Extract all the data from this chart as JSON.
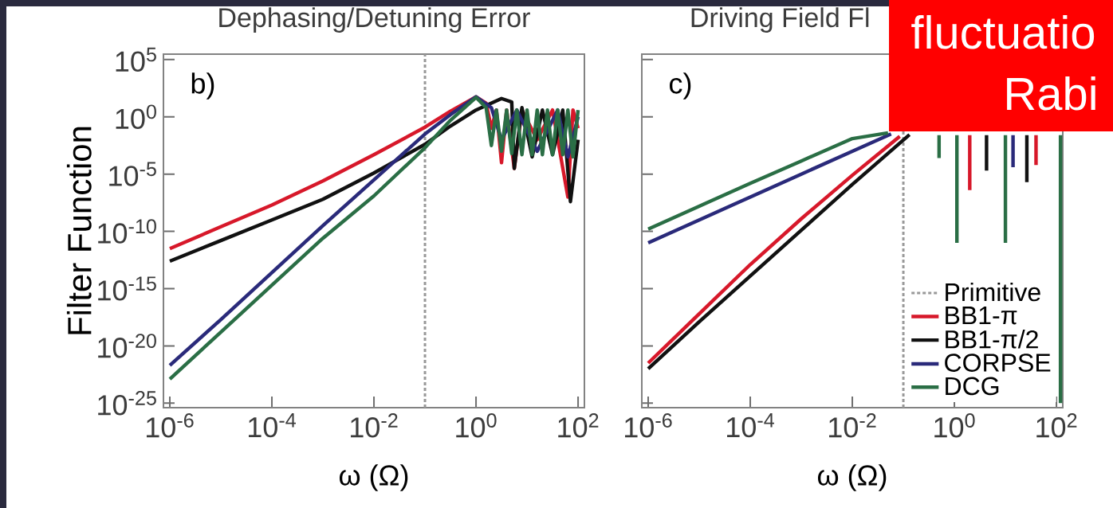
{
  "chart_data": [
    {
      "type": "line",
      "title": "Dephasing/Detuning Error",
      "xlabel": "ω (Ω)",
      "ylabel": "Filter Function",
      "log": "xy",
      "legend": false,
      "grid": false,
      "xlim": [
        7.5e-07,
        133
      ],
      "ylim": [
        4e-26,
        300000.0
      ],
      "xticks": [
        {
          "value": 1e-06,
          "label": "10$^{-6}$"
        },
        {
          "value": 0.0001,
          "label": "10$^{-4}$"
        },
        {
          "value": 0.01,
          "label": "10$^{-2}$"
        },
        {
          "value": 1,
          "label": "10$^{0}$"
        },
        {
          "value": 100,
          "label": "10$^{2}$"
        }
      ],
      "yticks": [
        {
          "value": 100000.0,
          "label": "10$^{5}$"
        },
        {
          "value": 1,
          "label": "10$^{0}$"
        },
        {
          "value": 1e-05,
          "label": "10$^{-5}$"
        },
        {
          "value": 1e-10,
          "label": "10$^{-10}$"
        },
        {
          "value": 1e-15,
          "label": "10$^{-15}$"
        },
        {
          "value": 1e-20,
          "label": "10$^{-20}$"
        },
        {
          "value": 1e-25,
          "label": "10$^{-25}$"
        }
      ],
      "ref_lines": [
        {
          "axis": "x",
          "value": 0.1,
          "color": "#999999",
          "line_style": "dotted"
        }
      ],
      "annotations": [
        "b)"
      ],
      "series": [
        {
          "color": "#d7182a",
          "x": [
            1e-06,
            1e-05,
            0.0001,
            0.001,
            0.01,
            0.1,
            0.316,
            1,
            1.58,
            2,
            2.51,
            3.16,
            3.98,
            5.62,
            7.94,
            15.8,
            31.6,
            63.1,
            79.4,
            100
          ],
          "values": [
            3.16e-12,
            2.51e-10,
            2e-08,
            2.51e-06,
            0.000501,
            0.126,
            3.16,
            56.2,
            15.8,
            0.1,
            3.98,
            0.0001,
            3.98,
            3.16e-05,
            3.98,
            0.01,
            3.98,
            1e-07,
            3.98,
            0.1
          ]
        },
        {
          "color": "#111111",
          "x": [
            1e-06,
            1e-05,
            0.0001,
            0.001,
            0.01,
            0.1,
            0.316,
            1,
            3.16,
            5.01,
            5.62,
            7.94,
            12.6,
            20,
            31.6,
            50.1,
            70.8,
            100
          ],
          "values": [
            2.51e-13,
            1.58e-11,
            1e-09,
            6.31e-08,
            1.26e-05,
            0.00398,
            0.158,
            3.98,
            39.8,
            20,
            3.16e-05,
            6.31,
            0.000316,
            3.98,
            0.000501,
            3.98,
            3.98e-08,
            0.01
          ]
        },
        {
          "color": "#2a2a7a",
          "x": [
            1e-06,
            1e-05,
            0.0001,
            0.001,
            0.01,
            0.1,
            0.316,
            1,
            2,
            3.16,
            6.31,
            15.8,
            39.8,
            63.1,
            100
          ],
          "values": [
            2e-22,
            2e-18,
            2.51e-14,
            3.16e-10,
            3.16e-06,
            0.0316,
            1.58,
            56.2,
            6.31,
            0.01,
            3.98,
            0.001,
            3.98,
            0.000316,
            1
          ]
        },
        {
          "color": "#2a6e45",
          "x": [
            1e-06,
            1e-05,
            0.0001,
            0.001,
            0.01,
            0.1,
            0.316,
            1,
            1.58,
            2,
            2.51,
            3.16,
            3.98,
            5.01,
            6.31,
            7.94,
            10,
            12.6,
            15.8,
            20,
            25.1,
            31.6,
            39.8,
            50.1,
            63.1,
            79.4,
            100
          ],
          "values": [
            1.26e-23,
            1.58e-19,
            2e-15,
            2.51e-11,
            1.26e-07,
            0.002,
            0.501,
            50.1,
            6.31,
            0.00316,
            3.98,
            0.001,
            3.98,
            0.000631,
            3.98,
            0.000501,
            3.98,
            0.000501,
            3.98,
            0.000501,
            3.98,
            0.000501,
            3.98,
            0.000501,
            3.98,
            0.000316,
            3.98
          ]
        }
      ]
    },
    {
      "type": "line",
      "title": "Driving Field Fl",
      "xlabel": "ω (Ω)",
      "log": "xy",
      "legend": "bottom right",
      "grid": false,
      "tick_labels": "x",
      "xlim": [
        7.5e-07,
        133
      ],
      "ylim": [
        4e-26,
        300000.0
      ],
      "xticks": [
        {
          "value": 1e-06,
          "label": "10$^{-6}$"
        },
        {
          "value": 0.0001,
          "label": "10$^{-4}$"
        },
        {
          "value": 0.01,
          "label": "10$^{-2}$"
        },
        {
          "value": 1,
          "label": "10$^{0}$"
        },
        {
          "value": 100,
          "label": "10$^{2}$"
        }
      ],
      "yticks": [
        {
          "value": 100000.0,
          "label": null
        },
        {
          "value": 1,
          "label": null
        },
        {
          "value": 1e-05,
          "label": null
        },
        {
          "value": 1e-10,
          "label": null
        },
        {
          "value": 1e-15,
          "label": null
        },
        {
          "value": 1e-20,
          "label": null
        },
        {
          "value": 1e-25,
          "label": null
        }
      ],
      "ref_lines": [
        {
          "axis": "x",
          "value": 0.1,
          "label": "Primitive",
          "color": "#999999",
          "line_style": "dotted"
        }
      ],
      "annotations": [
        "c)",
        "fluctuatio",
        "Rabi"
      ],
      "series": [
        {
          "name": "BB1-π",
          "color": "#d7182a",
          "x": [
            1e-06,
            1e-05,
            0.0001,
            0.001,
            0.01,
            0.0851,
            1,
            2,
            2,
            20,
            39.8,
            39.8
          ],
          "values": [
            3.16e-22,
            6.31e-18,
            1.26e-13,
            1.26e-09,
            7.94e-06,
            0.02,
            null,
            0.0251,
            3.98e-07,
            null,
            0.0251,
            6.31e-05
          ]
        },
        {
          "name": "BB1-π/2",
          "color": "#111111",
          "x": [
            1e-06,
            1e-05,
            0.0001,
            0.001,
            0.01,
            0.132,
            1,
            4.27,
            4.27,
            10,
            26.3,
            26.3
          ],
          "values": [
            1e-22,
            1.26e-18,
            1.26e-14,
            1.26e-10,
            1.26e-06,
            0.0282,
            null,
            0.0251,
            2e-05,
            null,
            0.0251,
            2e-06
          ]
        },
        {
          "name": "CORPSE",
          "color": "#2a2a7a",
          "x": [
            1e-06,
            1e-05,
            0.0001,
            0.001,
            0.01,
            0.0575,
            1,
            14.1,
            14.1
          ],
          "values": [
            1e-11,
            1e-09,
            1e-07,
            1e-05,
            0.001,
            0.0316,
            null,
            0.0251,
            3.98e-05
          ]
        },
        {
          "name": "DCG",
          "color": "#2a6e45",
          "x": [
            1e-06,
            1e-05,
            0.0001,
            0.001,
            0.01,
            0.0501,
            0.2,
            0.501,
            0.501,
            0.8,
            1.12,
            1.12,
            5,
            10,
            10,
            50,
            120,
            120
          ],
          "values": [
            1.58e-10,
            1.58e-08,
            1.58e-06,
            0.000141,
            0.0126,
            0.0398,
            null,
            0.0251,
            0.000251,
            null,
            0.0251,
            1e-11,
            null,
            0.0251,
            1e-11,
            null,
            0.0251,
            1e-25
          ]
        }
      ]
    }
  ]
}
